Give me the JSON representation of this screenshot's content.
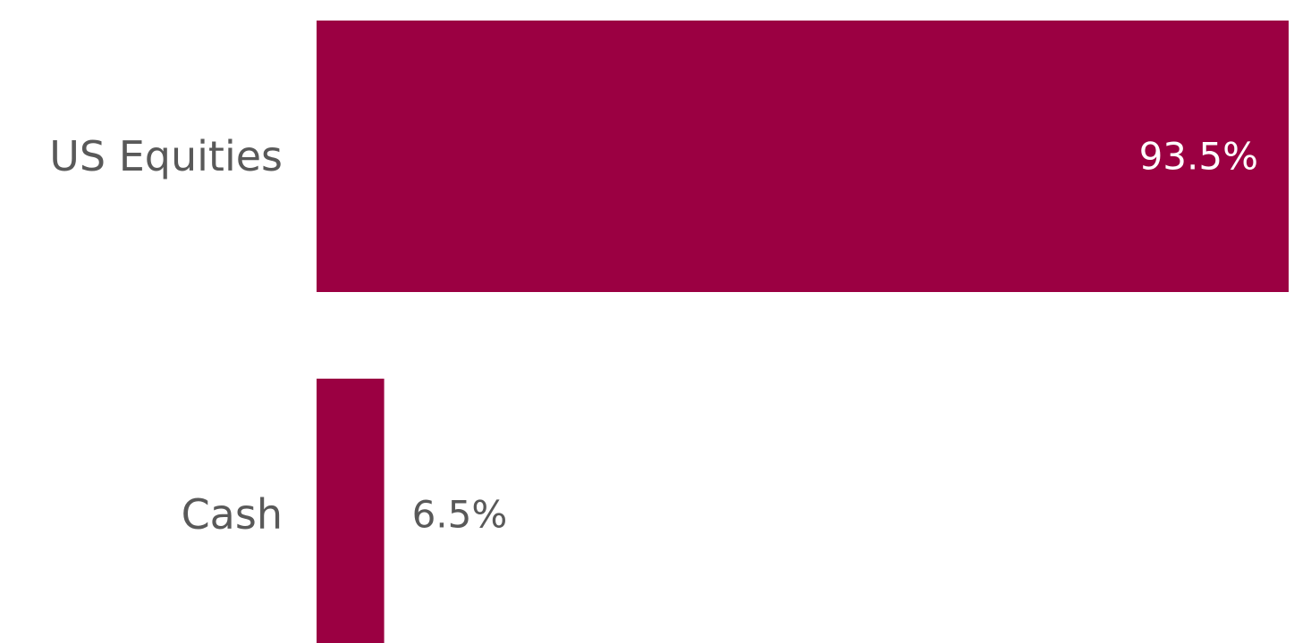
{
  "chart_data": {
    "type": "bar",
    "orientation": "horizontal",
    "categories": [
      "US Equities",
      "Cash"
    ],
    "values": [
      93.5,
      6.5
    ],
    "value_labels": [
      "93.5%",
      "6.5%"
    ],
    "unit": "%",
    "xlim": [
      0,
      93.5
    ],
    "grid": false,
    "legend": "none",
    "title": "",
    "xlabel": "",
    "ylabel": ""
  },
  "colors": {
    "bar": "#9b0042",
    "label_text": "#595959",
    "inside_label_text": "#ffffff",
    "background": "#ffffff"
  }
}
